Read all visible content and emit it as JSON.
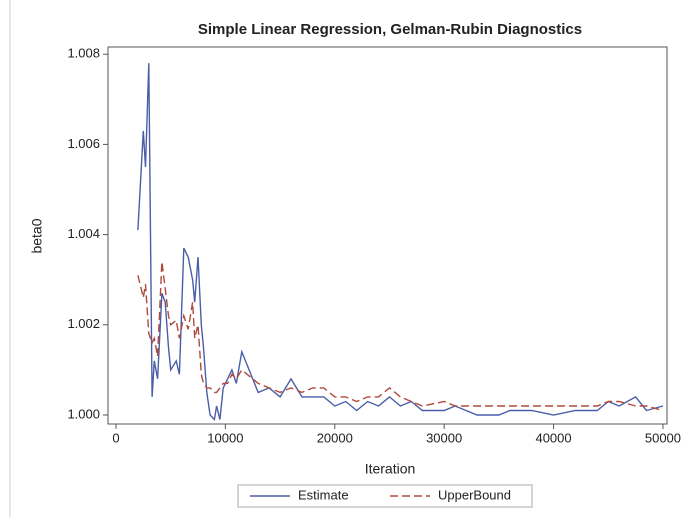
{
  "chart_data": {
    "type": "line",
    "title": "Simple Linear Regression, Gelman-Rubin Diagnostics",
    "x_label": "Iteration",
    "y_label": "beta0",
    "x": [
      2000,
      2500,
      2700,
      3000,
      3300,
      3500,
      3800,
      4200,
      4500,
      4800,
      5000,
      5500,
      5800,
      6200,
      6600,
      7000,
      7200,
      7500,
      7800,
      8000,
      8300,
      8600,
      9000,
      9200,
      9500,
      9800,
      10200,
      10600,
      11000,
      11500,
      12000,
      12500,
      13000,
      14000,
      15000,
      16000,
      17000,
      18000,
      19000,
      20000,
      21000,
      22000,
      23000,
      24000,
      25000,
      26000,
      27000,
      28000,
      30000,
      31000,
      32000,
      33000,
      35000,
      36000,
      38000,
      40000,
      42000,
      44000,
      45000,
      46000,
      47500,
      48500,
      50000
    ],
    "series": [
      {
        "name": "Estimate",
        "color": "#4a5ea8",
        "dash": false,
        "values": [
          1.0041,
          1.0063,
          1.0055,
          1.0078,
          1.0004,
          1.0012,
          1.0008,
          1.0027,
          1.0025,
          1.0015,
          1.001,
          1.0012,
          1.0009,
          1.0037,
          1.0035,
          1.003,
          1.0025,
          1.0035,
          1.002,
          1.0015,
          1.0005,
          1.0,
          0.9999,
          1.0002,
          0.9999,
          1.0006,
          1.0008,
          1.001,
          1.0007,
          1.0014,
          1.0011,
          1.0008,
          1.0005,
          1.0006,
          1.0004,
          1.0008,
          1.0004,
          1.0004,
          1.0004,
          1.0002,
          1.0003,
          1.0001,
          1.0003,
          1.0002,
          1.0004,
          1.0002,
          1.0003,
          1.0001,
          1.0001,
          1.0002,
          1.0001,
          1.0,
          1.0,
          1.0001,
          1.0001,
          1.0,
          1.0001,
          1.0001,
          1.0003,
          1.0002,
          1.0004,
          1.0001,
          1.0002
        ]
      },
      {
        "name": "UpperBound",
        "color": "#b04a3c",
        "dash": true,
        "values": [
          1.0031,
          1.0026,
          1.0029,
          1.0018,
          1.0016,
          1.0017,
          1.0013,
          1.0034,
          1.0028,
          1.0022,
          1.002,
          1.0021,
          1.0017,
          1.0022,
          1.0019,
          1.0025,
          1.0017,
          1.002,
          1.0009,
          1.0007,
          1.0006,
          1.0006,
          1.0005,
          1.0005,
          1.0006,
          1.0007,
          1.0007,
          1.0009,
          1.0008,
          1.001,
          1.0009,
          1.0008,
          1.0007,
          1.0006,
          1.0005,
          1.0006,
          1.0005,
          1.0006,
          1.0006,
          1.0004,
          1.0004,
          1.0003,
          1.0004,
          1.0004,
          1.0006,
          1.0004,
          1.0003,
          1.0002,
          1.0003,
          1.0002,
          1.0002,
          1.0002,
          1.0002,
          1.0002,
          1.0002,
          1.0002,
          1.0002,
          1.0002,
          1.0003,
          1.0003,
          1.0002,
          1.0002,
          1.0001
        ]
      }
    ],
    "xlim": [
      -730,
      50370
    ],
    "ylim": [
      0.9998,
      1.00816
    ],
    "xticks": [
      0,
      10000,
      20000,
      30000,
      40000,
      50000
    ],
    "yticks": [
      {
        "value": 1.0,
        "label": "1.000"
      },
      {
        "value": 1.002,
        "label": "1.002"
      },
      {
        "value": 1.004,
        "label": "1.004"
      },
      {
        "value": 1.006,
        "label": "1.006"
      },
      {
        "value": 1.008,
        "label": "1.008"
      }
    ],
    "legend": "bottom",
    "grid": false
  }
}
